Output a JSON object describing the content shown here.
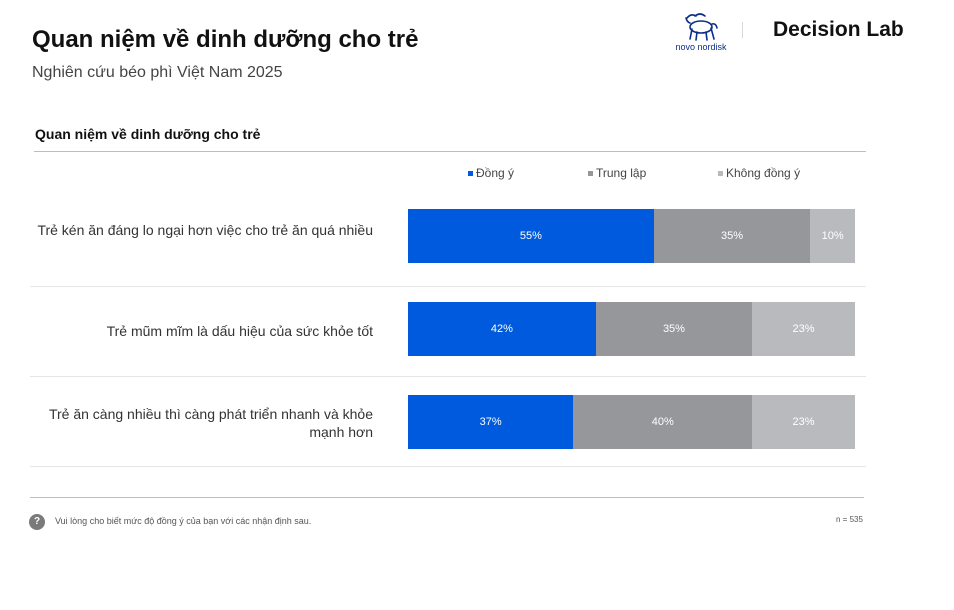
{
  "header": {
    "title": "Quan niệm về dinh dưỡng cho trẻ",
    "subtitle": "Nghiên cứu béo phì Việt Nam 2025",
    "logo_novo_text": "novo nordisk",
    "logo_dl": "Decision Lab"
  },
  "colors": {
    "dong_y": "#005ade",
    "trung_lap": "#96979b",
    "khong_dong_y": "#b9babd"
  },
  "chart_data": {
    "type": "bar",
    "orientation": "horizontal",
    "stacked": "100%",
    "title": "Quan niệm về dinh dưỡng cho trẻ",
    "legend_position": "top",
    "categories": [
      [
        "Trẻ kén ăn đáng lo ngại hơn việc cho trẻ ăn quá nhiều"
      ],
      [
        "Trẻ mũm mĩm là dấu hiệu của sức khỏe tốt"
      ],
      [
        "Trẻ ăn càng nhiều thì càng phát triển nhanh và khỏe",
        "mạnh hơn"
      ]
    ],
    "series": [
      {
        "name": "Đồng ý",
        "values": [
          55,
          42,
          37
        ],
        "labels": [
          "55%",
          "42%",
          "37%"
        ],
        "color": "#005ade"
      },
      {
        "name": "Trung lập",
        "values": [
          35,
          35,
          40
        ],
        "labels": [
          "35%",
          "35%",
          "40%"
        ],
        "color": "#96979b"
      },
      {
        "name": "Không đồng ý",
        "values": [
          10,
          23,
          23
        ],
        "labels": [
          "10%",
          "23%",
          "23%"
        ],
        "color": "#b9babd"
      }
    ]
  },
  "footer": {
    "question_icon": "?",
    "note": "Vui lòng cho biết mức độ đồng ý của bạn với các nhận định sau.",
    "n": "n = 535"
  }
}
